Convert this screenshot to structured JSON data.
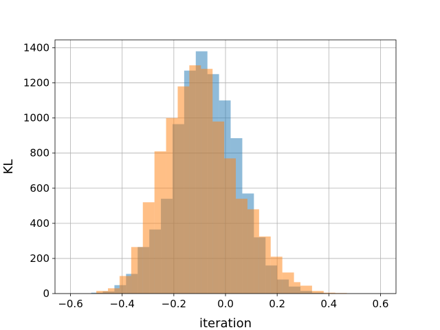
{
  "chart_data": {
    "type": "bar",
    "title": "",
    "xlabel": "iteration",
    "ylabel": "KL",
    "xlim": [
      -0.66,
      0.66
    ],
    "ylim": [
      0,
      1445
    ],
    "xticks": [
      -0.6,
      -0.4,
      -0.2,
      0.0,
      0.2,
      0.4,
      0.6
    ],
    "xtick_labels": [
      "−0.6",
      "−0.4",
      "−0.2",
      "0.0",
      "0.2",
      "0.4",
      "0.6"
    ],
    "yticks": [
      0,
      200,
      400,
      600,
      800,
      1000,
      1200,
      1400
    ],
    "ytick_labels": [
      "0",
      "200",
      "400",
      "600",
      "800",
      "1000",
      "1200",
      "1400"
    ],
    "grid": true,
    "legend": "none",
    "series": [
      {
        "color": "#1f77b4",
        "alpha": 0.5,
        "bin_edges": [
          -0.52,
          -0.475,
          -0.43,
          -0.385,
          -0.34,
          -0.295,
          -0.25,
          -0.205,
          -0.16,
          -0.115,
          -0.07,
          -0.025,
          0.02,
          0.065,
          0.11,
          0.155,
          0.2,
          0.245,
          0.29,
          0.335,
          0.38,
          0.425
        ],
        "counts": [
          5,
          12,
          48,
          112,
          265,
          365,
          540,
          965,
          1270,
          1380,
          1250,
          1100,
          885,
          570,
          320,
          160,
          80,
          40,
          15,
          5,
          2
        ]
      },
      {
        "color": "#ff7f0e",
        "alpha": 0.5,
        "bin_edges": [
          -0.5,
          -0.455,
          -0.41,
          -0.365,
          -0.32,
          -0.275,
          -0.23,
          -0.185,
          -0.14,
          -0.095,
          -0.05,
          -0.005,
          0.04,
          0.085,
          0.13,
          0.175,
          0.22,
          0.265,
          0.29,
          0.335,
          0.38,
          0.425,
          0.47
        ],
        "counts": [
          15,
          30,
          100,
          265,
          520,
          810,
          1000,
          1180,
          1300,
          1280,
          980,
          770,
          540,
          480,
          325,
          210,
          120,
          65,
          45,
          15,
          5,
          3
        ]
      }
    ]
  }
}
